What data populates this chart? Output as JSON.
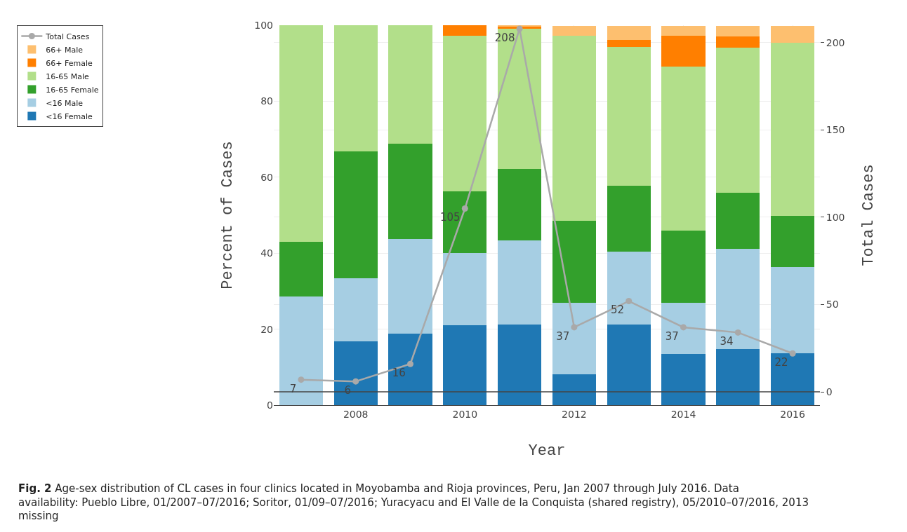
{
  "chart_data": {
    "type": "bar",
    "stacked": true,
    "xlabel": "Year",
    "ylabel": "Percent of Cases",
    "y2label": "Total Cases",
    "x": [
      2007,
      2008,
      2009,
      2010,
      2011,
      2012,
      2013,
      2014,
      2015,
      2016
    ],
    "xlim": [
      2006.5,
      2016.5
    ],
    "xticks": [
      2008,
      2010,
      2012,
      2014,
      2016
    ],
    "ylim": [
      0,
      100
    ],
    "yticks": [
      0,
      20,
      40,
      60,
      80,
      100
    ],
    "y2lim": [
      -7.6,
      210
    ],
    "y2ticks": [
      0,
      50,
      100,
      150,
      200
    ],
    "grid": true,
    "legend": "top left",
    "series": [
      {
        "name": "<16 Female",
        "color": "#1f78b4",
        "values": [
          0,
          16.7,
          18.8,
          21.0,
          21.2,
          8.1,
          21.2,
          13.5,
          14.7,
          13.6
        ]
      },
      {
        "name": "<16 Male",
        "color": "#a6cee3",
        "values": [
          28.6,
          16.7,
          25.0,
          19.0,
          22.1,
          18.9,
          19.2,
          13.5,
          26.5,
          22.7
        ]
      },
      {
        "name": "16-65 Female",
        "color": "#33a02c",
        "values": [
          14.3,
          33.3,
          25.0,
          16.2,
          18.8,
          21.6,
          17.3,
          18.9,
          14.7,
          13.6
        ]
      },
      {
        "name": "16-65 Male",
        "color": "#b2df8a",
        "values": [
          57.1,
          33.3,
          31.2,
          41.0,
          37.0,
          48.6,
          36.5,
          43.2,
          38.2,
          45.5
        ]
      },
      {
        "name": "66+ Female",
        "color": "#ff7f00",
        "values": [
          0,
          0,
          0,
          2.8,
          0.5,
          0,
          1.9,
          8.1,
          2.9,
          0
        ]
      },
      {
        "name": "66+ Male",
        "color": "#fdbf6f",
        "values": [
          0,
          0,
          0,
          0,
          0.4,
          2.7,
          3.8,
          2.7,
          2.9,
          4.5
        ]
      },
      {
        "name": "Total Cases",
        "type": "line",
        "axis": "y2",
        "color": "#a9a9a9",
        "marker": "circle",
        "data_labels": true,
        "values": [
          7,
          6,
          16,
          105,
          208,
          37,
          52,
          37,
          34,
          22
        ]
      }
    ],
    "ref_lines": [
      {
        "axis": "y2",
        "value": 0,
        "color": "#444444"
      }
    ],
    "annotations": [
      "Fig. 2",
      "Age-sex distribution of CL cases in four clinics located in Moyobamba and Rioja provinces, Peru, Jan 2007 through July 2016. Data availability: Pueblo Libre, 01/2007–07/2016; Soritor, 01/09–07/2016; Yuracyacu and El Valle de la Conquista (shared registry), 05/2010–07/2016, 2013 missing"
    ]
  }
}
